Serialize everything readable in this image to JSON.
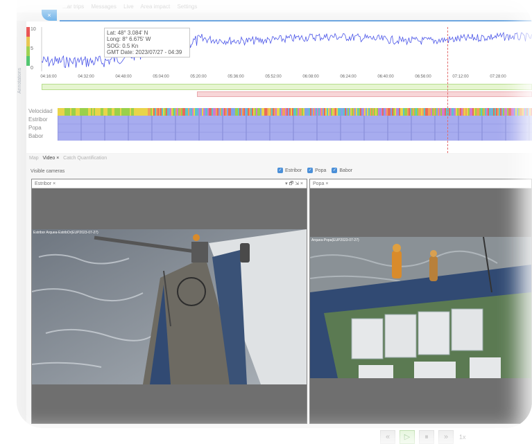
{
  "nav": {
    "tabs": [
      "...ar trips",
      "Messages",
      "Live",
      "Area impact",
      "Settings"
    ],
    "close_label": "×"
  },
  "sidebar": {
    "vertical_label": "Annotations"
  },
  "chart": {
    "y_ticks": [
      "10",
      "5",
      "0"
    ],
    "x_ticks": [
      "04:16:00",
      "04:32:00",
      "04:48:00",
      "05:04:00",
      "05:20:00",
      "05:36:00",
      "05:52:00",
      "06:08:00",
      "06:24:00",
      "06:40:00",
      "06:56:00",
      "07:12:00",
      "07:28:00"
    ],
    "line_color": "#4a55e8",
    "cursor_color": "#e26b6b"
  },
  "tooltip": {
    "lat": "Lat: 48° 3.084' N",
    "long": "Long: 8° 6.675' W",
    "sog": "SOG: 0.5 Kn",
    "gmt": "GMT Date: 2023/07/27 - 04:39"
  },
  "tracks": [
    "Velocidad",
    "Estribor",
    "Popa",
    "Babor"
  ],
  "lower_tabs": {
    "map": "Map",
    "video": "Video",
    "close": "×",
    "catch": "Catch Quantification"
  },
  "visible_cameras_label": "Visible cameras",
  "camera_toggles": [
    "Estribor",
    "Popa",
    "Babor"
  ],
  "panes": {
    "left": {
      "title": "Estribor",
      "close": "×",
      "ctrls": "▾ 🗗 ⇲ ×",
      "overlay": "Estribor Arquea-EstribOr(EUP2023-07-27)"
    },
    "right": {
      "title": "Popa",
      "close": "×",
      "overlay": "Arquea-Popa(EUP2023-07-27)"
    }
  },
  "playback": {
    "rewind": "«",
    "play": "▷",
    "pause": "⏸",
    "forward": "»",
    "speed": "1x"
  }
}
